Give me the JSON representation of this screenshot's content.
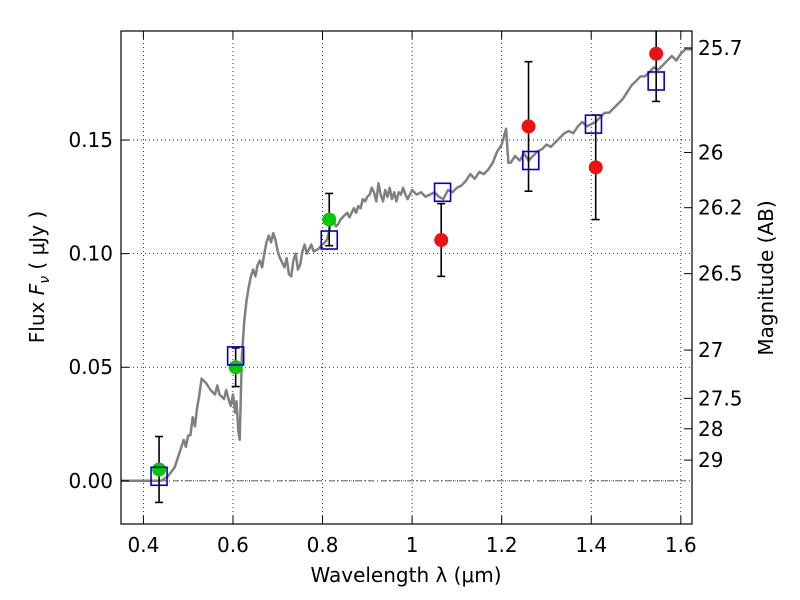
{
  "chart_data": {
    "type": "scatter",
    "xlabel": "Wavelength  λ (μm)",
    "ylabel_prefix": "Flux  ",
    "ylabel_symbol": "F",
    "ylabel_sub": "ν",
    "ylabel_units": " ( μJy )",
    "y2label": "Magnitude (AB)",
    "xlim": [
      0.35,
      1.625
    ],
    "ylim": [
      -0.019,
      0.198
    ],
    "grid": true,
    "xticks": [
      {
        "value": 0.4,
        "label": "0.4"
      },
      {
        "value": 0.6,
        "label": "0.6"
      },
      {
        "value": 0.8,
        "label": "0.8"
      },
      {
        "value": 1.0,
        "label": "1"
      },
      {
        "value": 1.2,
        "label": "1.2"
      },
      {
        "value": 1.4,
        "label": "1.4"
      },
      {
        "value": 1.6,
        "label": "1.6"
      }
    ],
    "yticks": [
      {
        "value": 0.0,
        "label": "0.00"
      },
      {
        "value": 0.05,
        "label": "0.05"
      },
      {
        "value": 0.1,
        "label": "0.10"
      },
      {
        "value": 0.15,
        "label": "0.15"
      }
    ],
    "y2ticks": [
      {
        "mag": 25.7,
        "label": "25.7"
      },
      {
        "mag": 26.0,
        "label": "26"
      },
      {
        "mag": 26.2,
        "label": "26.2"
      },
      {
        "mag": 26.5,
        "label": "26.5"
      },
      {
        "mag": 27.0,
        "label": "27"
      },
      {
        "mag": 27.5,
        "label": "27.5"
      },
      {
        "mag": 28.0,
        "label": "28"
      },
      {
        "mag": 29.0,
        "label": "29"
      }
    ],
    "colors": {
      "model_line": "#808080",
      "detections": "#00cc00",
      "measurements": "#ee1111",
      "model_points": "#0000cc",
      "errorbar": "#000000",
      "zero_line": "#555555"
    },
    "model_spectrum": [
      [
        0.35,
        0.0
      ],
      [
        0.44,
        0.0
      ],
      [
        0.455,
        0.002
      ],
      [
        0.47,
        0.006
      ],
      [
        0.48,
        0.012
      ],
      [
        0.49,
        0.018
      ],
      [
        0.495,
        0.015
      ],
      [
        0.5,
        0.02
      ],
      [
        0.505,
        0.02
      ],
      [
        0.51,
        0.028
      ],
      [
        0.515,
        0.024
      ],
      [
        0.52,
        0.032
      ],
      [
        0.525,
        0.038
      ],
      [
        0.53,
        0.045
      ],
      [
        0.54,
        0.043
      ],
      [
        0.55,
        0.04
      ],
      [
        0.56,
        0.038
      ],
      [
        0.565,
        0.042
      ],
      [
        0.57,
        0.038
      ],
      [
        0.58,
        0.036
      ],
      [
        0.585,
        0.04
      ],
      [
        0.59,
        0.036
      ],
      [
        0.595,
        0.033
      ],
      [
        0.6,
        0.038
      ],
      [
        0.605,
        0.03
      ],
      [
        0.608,
        0.035
      ],
      [
        0.612,
        0.022
      ],
      [
        0.615,
        0.018
      ],
      [
        0.618,
        0.04
      ],
      [
        0.62,
        0.055
      ],
      [
        0.625,
        0.07
      ],
      [
        0.63,
        0.079
      ],
      [
        0.635,
        0.085
      ],
      [
        0.64,
        0.09
      ],
      [
        0.645,
        0.093
      ],
      [
        0.65,
        0.09
      ],
      [
        0.655,
        0.095
      ],
      [
        0.66,
        0.097
      ],
      [
        0.665,
        0.094
      ],
      [
        0.67,
        0.1
      ],
      [
        0.675,
        0.105
      ],
      [
        0.68,
        0.108
      ],
      [
        0.685,
        0.105
      ],
      [
        0.69,
        0.109
      ],
      [
        0.695,
        0.106
      ],
      [
        0.7,
        0.101
      ],
      [
        0.705,
        0.098
      ],
      [
        0.71,
        0.096
      ],
      [
        0.715,
        0.094
      ],
      [
        0.72,
        0.098
      ],
      [
        0.725,
        0.091
      ],
      [
        0.73,
        0.09
      ],
      [
        0.735,
        0.097
      ],
      [
        0.74,
        0.1
      ],
      [
        0.745,
        0.093
      ],
      [
        0.75,
        0.095
      ],
      [
        0.755,
        0.101
      ],
      [
        0.76,
        0.104
      ],
      [
        0.765,
        0.1
      ],
      [
        0.77,
        0.102
      ],
      [
        0.775,
        0.104
      ],
      [
        0.78,
        0.101
      ],
      [
        0.79,
        0.102
      ],
      [
        0.8,
        0.104
      ],
      [
        0.81,
        0.106
      ],
      [
        0.815,
        0.11
      ],
      [
        0.82,
        0.115
      ],
      [
        0.825,
        0.114
      ],
      [
        0.83,
        0.112
      ],
      [
        0.835,
        0.113
      ],
      [
        0.84,
        0.115
      ],
      [
        0.85,
        0.117
      ],
      [
        0.855,
        0.118
      ],
      [
        0.86,
        0.116
      ],
      [
        0.87,
        0.12
      ],
      [
        0.875,
        0.118
      ],
      [
        0.88,
        0.121
      ],
      [
        0.885,
        0.12
      ],
      [
        0.89,
        0.124
      ],
      [
        0.895,
        0.123
      ],
      [
        0.9,
        0.125
      ],
      [
        0.905,
        0.126
      ],
      [
        0.91,
        0.129
      ],
      [
        0.915,
        0.127
      ],
      [
        0.92,
        0.123
      ],
      [
        0.925,
        0.131
      ],
      [
        0.93,
        0.126
      ],
      [
        0.935,
        0.123
      ],
      [
        0.94,
        0.128
      ],
      [
        0.945,
        0.125
      ],
      [
        0.95,
        0.129
      ],
      [
        0.955,
        0.124
      ],
      [
        0.96,
        0.127
      ],
      [
        0.965,
        0.123
      ],
      [
        0.97,
        0.127
      ],
      [
        0.975,
        0.126
      ],
      [
        0.98,
        0.129
      ],
      [
        0.985,
        0.126
      ],
      [
        0.99,
        0.124
      ],
      [
        1.0,
        0.128
      ],
      [
        1.01,
        0.126
      ],
      [
        1.02,
        0.127
      ],
      [
        1.03,
        0.125
      ],
      [
        1.04,
        0.126
      ],
      [
        1.05,
        0.127
      ],
      [
        1.06,
        0.125
      ],
      [
        1.07,
        0.124
      ],
      [
        1.08,
        0.128
      ],
      [
        1.09,
        0.127
      ],
      [
        1.1,
        0.129
      ],
      [
        1.11,
        0.13
      ],
      [
        1.12,
        0.132
      ],
      [
        1.13,
        0.135
      ],
      [
        1.14,
        0.133
      ],
      [
        1.15,
        0.136
      ],
      [
        1.16,
        0.135
      ],
      [
        1.17,
        0.137
      ],
      [
        1.18,
        0.14
      ],
      [
        1.19,
        0.145
      ],
      [
        1.2,
        0.148
      ],
      [
        1.21,
        0.155
      ],
      [
        1.215,
        0.14
      ],
      [
        1.22,
        0.14
      ],
      [
        1.23,
        0.143
      ],
      [
        1.24,
        0.141
      ],
      [
        1.25,
        0.144
      ],
      [
        1.26,
        0.141
      ],
      [
        1.27,
        0.143
      ],
      [
        1.28,
        0.145
      ],
      [
        1.29,
        0.146
      ],
      [
        1.3,
        0.148
      ],
      [
        1.31,
        0.147
      ],
      [
        1.32,
        0.149
      ],
      [
        1.33,
        0.151
      ],
      [
        1.34,
        0.153
      ],
      [
        1.35,
        0.154
      ],
      [
        1.36,
        0.153
      ],
      [
        1.37,
        0.156
      ],
      [
        1.38,
        0.158
      ],
      [
        1.39,
        0.156
      ],
      [
        1.4,
        0.157
      ],
      [
        1.41,
        0.158
      ],
      [
        1.42,
        0.16
      ],
      [
        1.43,
        0.162
      ],
      [
        1.44,
        0.162
      ],
      [
        1.45,
        0.164
      ],
      [
        1.46,
        0.166
      ],
      [
        1.47,
        0.168
      ],
      [
        1.48,
        0.171
      ],
      [
        1.49,
        0.174
      ],
      [
        1.5,
        0.176
      ],
      [
        1.51,
        0.178
      ],
      [
        1.52,
        0.178
      ],
      [
        1.53,
        0.18
      ],
      [
        1.54,
        0.182
      ],
      [
        1.55,
        0.181
      ],
      [
        1.56,
        0.183
      ],
      [
        1.57,
        0.185
      ],
      [
        1.58,
        0.187
      ],
      [
        1.59,
        0.185
      ],
      [
        1.6,
        0.188
      ],
      [
        1.61,
        0.19
      ],
      [
        1.625,
        0.19
      ]
    ],
    "detections": [
      {
        "x": 0.435,
        "y": 0.005,
        "err": 0.0145
      },
      {
        "x": 0.606,
        "y": 0.05,
        "err": 0.0085
      },
      {
        "x": 0.815,
        "y": 0.115,
        "err": 0.0115
      }
    ],
    "measurements": [
      {
        "x": 1.065,
        "y": 0.106,
        "err": 0.016
      },
      {
        "x": 1.26,
        "y": 0.156,
        "err": 0.0285
      },
      {
        "x": 1.41,
        "y": 0.138,
        "err": 0.023
      },
      {
        "x": 1.545,
        "y": 0.188,
        "err": 0.021
      }
    ],
    "model_points": [
      {
        "x": 0.435,
        "y": 0.002
      },
      {
        "x": 0.606,
        "y": 0.055
      },
      {
        "x": 0.815,
        "y": 0.106
      },
      {
        "x": 1.068,
        "y": 0.127
      },
      {
        "x": 1.265,
        "y": 0.141
      },
      {
        "x": 1.405,
        "y": 0.157
      },
      {
        "x": 1.545,
        "y": 0.176
      }
    ]
  }
}
